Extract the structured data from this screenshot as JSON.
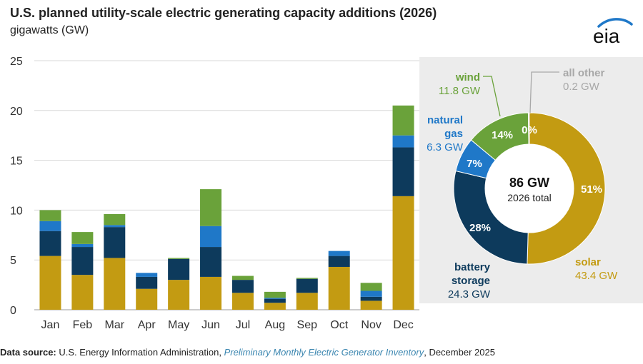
{
  "title": "U.S. planned utility-scale electric generating capacity additions (2026)",
  "subtitle": "gigawatts (GW)",
  "logo_text": "eia",
  "colors": {
    "solar": "#c39b12",
    "battery_storage": "#0d3a5c",
    "natural_gas": "#1f78c8",
    "wind": "#6aa23a",
    "all_other": "#a8a8a8",
    "grid": "#d9d9d9",
    "panel": "#ececec",
    "link": "#3b86b0"
  },
  "chart_data": [
    {
      "type": "bar",
      "stacked": true,
      "categories": [
        "Jan",
        "Feb",
        "Mar",
        "Apr",
        "May",
        "Jun",
        "Jul",
        "Aug",
        "Sep",
        "Oct",
        "Nov",
        "Dec"
      ],
      "series": [
        {
          "key": "solar",
          "values": [
            5.4,
            3.5,
            5.2,
            2.1,
            3.0,
            3.3,
            1.7,
            0.7,
            1.7,
            4.3,
            0.9,
            11.4
          ]
        },
        {
          "key": "battery_storage",
          "values": [
            2.5,
            2.8,
            3.1,
            1.2,
            2.1,
            3.0,
            1.3,
            0.4,
            1.4,
            1.1,
            0.4,
            4.9
          ]
        },
        {
          "key": "natural_gas",
          "values": [
            1.0,
            0.3,
            0.2,
            0.4,
            0.0,
            2.1,
            0.0,
            0.1,
            0.0,
            0.5,
            0.6,
            1.2
          ]
        },
        {
          "key": "wind",
          "values": [
            1.1,
            1.2,
            1.1,
            0.0,
            0.1,
            3.7,
            0.4,
            0.6,
            0.1,
            0.0,
            0.8,
            3.0
          ]
        }
      ],
      "ylim": [
        0,
        25
      ],
      "yticks": [
        "0",
        "5",
        "10",
        "15",
        "20",
        "25"
      ],
      "grid": true
    },
    {
      "type": "pie",
      "donut": true,
      "center_value": "86 GW",
      "center_label": "2026 total",
      "slices": [
        {
          "key": "solar",
          "percent_label": "51%",
          "value": 43.4,
          "name": "solar",
          "value_label": "43.4 GW"
        },
        {
          "key": "battery_storage",
          "percent_label": "28%",
          "value": 24.3,
          "name": "battery\nstorage",
          "value_label": "24.3 GW"
        },
        {
          "key": "natural_gas",
          "percent_label": "7%",
          "value": 6.3,
          "name": "natural\ngas",
          "value_label": "6.3 GW"
        },
        {
          "key": "wind",
          "percent_label": "14%",
          "value": 11.8,
          "name": "wind",
          "value_label": "11.8 GW"
        },
        {
          "key": "all_other",
          "percent_label": "0%",
          "value": 0.2,
          "name": "all other",
          "value_label": "0.2 GW"
        }
      ]
    }
  ],
  "source": {
    "label": "Data source:",
    "org": "U.S. Energy Information Administration,",
    "doc": "Preliminary Monthly Electric Generator Inventory",
    "date": ", December 2025"
  }
}
